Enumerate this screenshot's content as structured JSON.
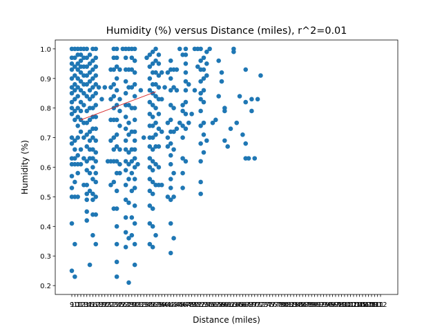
{
  "chart_data": {
    "type": "scatter",
    "title": "Humidity (%) versus Distance (miles), r^2=0.01",
    "xlabel": "Distance (miles)",
    "ylabel": "Humidity (%)",
    "x_tick_labels": [
      "9",
      "10",
      "11",
      "12",
      "13",
      "14",
      "15",
      "16",
      "17",
      "18",
      "19",
      "20",
      "21",
      "22",
      "23",
      "24",
      "25",
      "26",
      "27",
      "28",
      "29",
      "30",
      "31",
      "32",
      "33",
      "34",
      "35",
      "36",
      "37",
      "38",
      "39",
      "40",
      "41",
      "42",
      "43",
      "44",
      "45",
      "46",
      "47",
      "48",
      "49",
      "50",
      "51",
      "52",
      "53",
      "54",
      "55",
      "56",
      "57",
      "58",
      "59",
      "60",
      "61",
      "62",
      "63",
      "64",
      "65",
      "66",
      "67",
      "68",
      "69",
      "70",
      "71",
      "72",
      "73",
      "74",
      "75",
      "76",
      "77",
      "78",
      "79",
      "80",
      "81",
      "82",
      "83",
      "84",
      "85",
      "86",
      "87",
      "88",
      "89",
      "90",
      "91",
      "92",
      "93",
      "94",
      "95",
      "96",
      "97",
      "98",
      "99",
      "100",
      "101",
      "102",
      "103",
      "104",
      "105",
      "106",
      "107",
      "108",
      "109",
      "110",
      "111",
      "112"
    ],
    "y_ticks": [
      0.2,
      0.3,
      0.4,
      0.5,
      0.6,
      0.7,
      0.8,
      0.9,
      1.0
    ],
    "ylim": [
      0.17,
      1.03
    ],
    "marker_color": "#1f77b4",
    "fit_color": "#d62728",
    "fit_line": {
      "x": [
        12,
        37
      ],
      "y": [
        0.76,
        0.855
      ]
    },
    "columns": [
      {
        "x": 9,
        "y": [
          0.25,
          0.41,
          0.5,
          0.53,
          0.57,
          0.61,
          0.63,
          0.68,
          0.7,
          0.78,
          0.8,
          0.82,
          0.85,
          0.87,
          0.9,
          0.93,
          0.95,
          0.97,
          1.0
        ]
      },
      {
        "x": 10,
        "y": [
          0.23,
          0.34,
          0.5,
          0.55,
          0.61,
          0.63,
          0.66,
          0.69,
          0.76,
          0.79,
          0.83,
          0.86,
          0.88,
          0.91,
          0.94,
          0.97,
          1.0
        ]
      },
      {
        "x": 11,
        "y": [
          0.5,
          0.58,
          0.61,
          0.64,
          0.7,
          0.74,
          0.77,
          0.8,
          0.84,
          0.87,
          0.9,
          0.93,
          0.95,
          0.98,
          1.0
        ]
      },
      {
        "x": 12,
        "y": [
          0.61,
          0.66,
          0.72,
          0.76,
          0.79,
          0.82,
          0.86,
          0.89,
          0.92,
          0.94,
          0.96,
          0.98,
          1.0
        ]
      },
      {
        "x": 13,
        "y": [
          0.54,
          0.63,
          0.7,
          0.75,
          0.81,
          0.85,
          0.88,
          0.91,
          0.94,
          0.97,
          1.0
        ]
      },
      {
        "x": 14,
        "y": [
          0.42,
          0.45,
          0.49,
          0.51,
          0.54,
          0.59,
          0.62,
          0.67,
          0.71,
          0.75,
          0.79,
          0.84,
          0.88,
          0.91,
          0.94,
          0.97,
          1.0
        ]
      },
      {
        "x": 15,
        "y": [
          0.27,
          0.52,
          0.58,
          0.63,
          0.66,
          0.69,
          0.72,
          0.76,
          0.8,
          0.83,
          0.86,
          0.89,
          0.92,
          0.95,
          0.98
        ]
      },
      {
        "x": 16,
        "y": [
          0.37,
          0.44,
          0.49,
          0.51,
          0.56,
          0.6,
          0.63,
          0.66,
          0.7,
          0.73,
          0.77,
          0.8,
          0.84,
          0.87,
          0.9,
          0.93,
          0.96,
          1.0
        ]
      },
      {
        "x": 17,
        "y": [
          0.34,
          0.44,
          0.5,
          0.55,
          0.58,
          0.62,
          0.65,
          0.69,
          0.73,
          0.77,
          0.81,
          0.85,
          0.88,
          0.91,
          0.94,
          0.97,
          1.0
        ]
      },
      {
        "x": 18,
        "y": [
          0.87
        ]
      },
      {
        "x": 19,
        "y": [
          0.83
        ]
      },
      {
        "x": 20,
        "y": [
          0.87
        ]
      },
      {
        "x": 21,
        "y": [
          0.62
        ]
      },
      {
        "x": 22,
        "y": [
          0.54,
          0.62,
          0.69,
          0.76,
          0.83,
          0.87,
          0.93
        ]
      },
      {
        "x": 23,
        "y": [
          0.46,
          0.55,
          0.62,
          0.66,
          0.7,
          0.76,
          0.8,
          0.84,
          0.88,
          0.93,
          0.97,
          1.0
        ]
      },
      {
        "x": 24,
        "y": [
          0.23,
          0.28,
          0.34,
          0.4,
          0.46,
          0.52,
          0.58,
          0.62,
          0.67,
          0.71,
          0.76,
          0.81,
          0.86,
          0.9,
          0.94,
          0.97,
          1.0
        ]
      },
      {
        "x": 25,
        "y": [
          0.58,
          0.61,
          0.66,
          0.74,
          0.79,
          0.83,
          0.93
        ]
      },
      {
        "x": 26,
        "y": [
          1.0
        ]
      },
      {
        "x": 27,
        "y": [
          0.33,
          0.38,
          0.43,
          0.49,
          0.54,
          0.59,
          0.62,
          0.66,
          0.69,
          0.73,
          0.77,
          0.81,
          0.85,
          0.89,
          0.93,
          0.97,
          1.0
        ]
      },
      {
        "x": 28,
        "y": [
          0.21,
          0.36,
          0.48,
          0.56,
          0.61,
          0.65,
          0.71,
          0.75,
          0.81,
          0.87,
          0.93,
          1.0
        ]
      },
      {
        "x": 29,
        "y": [
          0.37,
          0.43,
          0.52,
          0.58,
          0.62,
          0.66,
          0.72,
          0.8,
          0.87,
          0.93,
          0.97,
          1.0
        ]
      },
      {
        "x": 30,
        "y": [
          0.27,
          0.34,
          0.41,
          0.47,
          0.53,
          0.56,
          0.6,
          0.63,
          0.66,
          0.69,
          0.72,
          0.76,
          0.8,
          0.84,
          0.88,
          0.92,
          0.96,
          1.0
        ]
      },
      {
        "x": 31,
        "y": [
          0.61
        ]
      },
      {
        "x": 32,
        "y": [
          0.86
        ]
      },
      {
        "x": 33,
        "y": [
          0.7
        ]
      },
      {
        "x": 34,
        "y": [
          0.97
        ]
      },
      {
        "x": 35,
        "y": [
          0.34,
          0.41,
          0.47,
          0.52,
          0.56,
          0.6,
          0.63,
          0.67,
          0.7,
          0.74,
          0.78,
          0.82,
          0.86,
          0.9,
          0.94,
          0.98
        ]
      },
      {
        "x": 36,
        "y": [
          0.33,
          0.4,
          0.46,
          0.51,
          0.55,
          0.59,
          0.62,
          0.66,
          0.7,
          0.74,
          0.77,
          0.81,
          0.85,
          0.88,
          0.92,
          0.95,
          0.99
        ]
      },
      {
        "x": 37,
        "y": [
          0.37,
          0.54,
          0.61,
          0.67,
          0.71,
          0.75,
          0.8,
          0.84,
          0.88,
          0.92,
          0.96,
          1.0
        ]
      },
      {
        "x": 38,
        "y": [
          0.54,
          0.6,
          0.67,
          0.73,
          0.78,
          0.83,
          0.87,
          0.91,
          0.95,
          0.98
        ]
      },
      {
        "x": 39,
        "y": [
          0.54,
          0.72,
          0.83,
          0.92
        ]
      },
      {
        "x": 40,
        "y": [
          0.87
        ]
      },
      {
        "x": 41,
        "y": [
          0.5,
          0.67,
          0.7,
          0.75,
          0.92
        ]
      },
      {
        "x": 42,
        "y": [
          0.31,
          0.41,
          0.49,
          0.53,
          0.56,
          0.61,
          0.64,
          0.68,
          0.72,
          0.76,
          0.81,
          0.86,
          0.9,
          0.93,
          0.96
        ]
      },
      {
        "x": 43,
        "y": [
          0.36,
          0.5,
          0.58,
          0.66,
          0.72,
          0.8,
          0.87,
          0.93
        ]
      },
      {
        "x": 44,
        "y": [
          0.73,
          0.86,
          0.93
        ]
      },
      {
        "x": 45,
        "y": [
          0.75,
          1.0
        ]
      },
      {
        "x": 46,
        "y": [
          0.53,
          0.58,
          0.63,
          0.7,
          0.74,
          0.79,
          0.81,
          0.98
        ]
      },
      {
        "x": 47,
        "y": [
          0.62,
          0.73,
          0.78,
          0.82,
          0.86,
          0.89,
          0.92,
          0.95,
          0.98,
          1.0
        ]
      },
      {
        "x": 48,
        "y": [
          0.75,
          0.88
        ]
      },
      {
        "x": 49,
        "y": [
          0.78
        ]
      },
      {
        "x": 50,
        "y": [
          0.86,
          1.0
        ]
      },
      {
        "x": 51,
        "y": [
          0.94,
          1.0
        ]
      },
      {
        "x": 52,
        "y": [
          0.51,
          0.55,
          0.62,
          0.68,
          0.74,
          0.79,
          0.83,
          0.85,
          0.89,
          0.93,
          0.96,
          1.0
        ]
      },
      {
        "x": 53,
        "y": [
          0.65,
          0.71,
          0.75,
          0.82,
          0.86,
          0.9,
          0.93,
          0.97
        ]
      },
      {
        "x": 54,
        "y": [
          0.69,
          0.91,
          0.95,
          0.99
        ]
      },
      {
        "x": 55,
        "y": [
          1.0
        ]
      },
      {
        "x": 56,
        "y": [
          0.75
        ]
      },
      {
        "x": 57,
        "y": [
          0.76
        ]
      },
      {
        "x": 58,
        "y": [
          0.84,
          0.96
        ]
      },
      {
        "x": 59,
        "y": [
          0.89,
          0.92
        ]
      },
      {
        "x": 60,
        "y": [
          0.69,
          0.79,
          0.8
        ]
      },
      {
        "x": 61,
        "y": [
          0.67
        ]
      },
      {
        "x": 62,
        "y": [
          0.73
        ]
      },
      {
        "x": 63,
        "y": [
          0.99,
          1.0
        ]
      },
      {
        "x": 64,
        "y": [
          0.75
        ]
      },
      {
        "x": 65,
        "y": [
          0.84
        ]
      },
      {
        "x": 66,
        "y": [
          0.71
        ]
      },
      {
        "x": 67,
        "y": [
          0.63,
          0.68,
          0.82,
          0.93
        ]
      },
      {
        "x": 68,
        "y": [
          0.63
        ]
      },
      {
        "x": 69,
        "y": [
          0.79,
          0.83
        ]
      },
      {
        "x": 70,
        "y": [
          0.63
        ]
      },
      {
        "x": 71,
        "y": [
          0.83
        ]
      },
      {
        "x": 72,
        "y": [
          0.91
        ]
      }
    ]
  }
}
